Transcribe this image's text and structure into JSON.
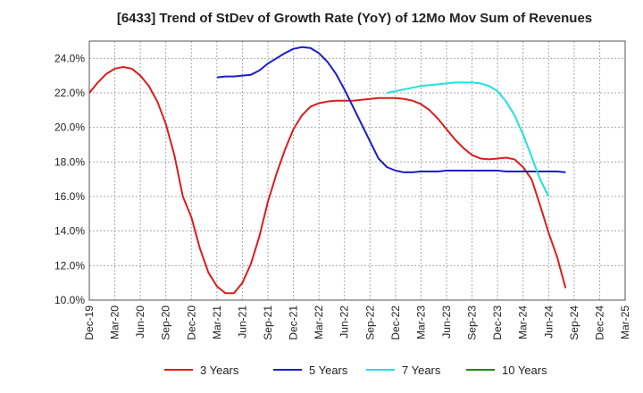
{
  "chart_data": {
    "type": "line",
    "title": "[6433]  Trend of StDev of Growth Rate (YoY) of 12Mo Mov Sum of Revenues",
    "xlabel": "",
    "ylabel": "",
    "ylim": [
      10,
      25
    ],
    "grid": true,
    "legend_position": "bottom",
    "y_ticks": [
      {
        "value": 10,
        "label": "10.0%"
      },
      {
        "value": 12,
        "label": "12.0%"
      },
      {
        "value": 14,
        "label": "14.0%"
      },
      {
        "value": 16,
        "label": "16.0%"
      },
      {
        "value": 18,
        "label": "18.0%"
      },
      {
        "value": 20,
        "label": "20.0%"
      },
      {
        "value": 22,
        "label": "22.0%"
      },
      {
        "value": 24,
        "label": "24.0%"
      }
    ],
    "x_ticks": [
      "Dec-19",
      "Mar-20",
      "Jun-20",
      "Sep-20",
      "Dec-20",
      "Mar-21",
      "Jun-21",
      "Sep-21",
      "Dec-21",
      "Mar-22",
      "Jun-22",
      "Sep-22",
      "Dec-22",
      "Mar-23",
      "Jun-23",
      "Sep-23",
      "Dec-23",
      "Mar-24",
      "Jun-24",
      "Sep-24",
      "Dec-24",
      "Mar-25"
    ],
    "series": [
      {
        "name": "3 Years",
        "color": "#dd1c1c",
        "points": [
          [
            0,
            22.0
          ],
          [
            1,
            22.6
          ],
          [
            2,
            23.1
          ],
          [
            3,
            23.4
          ],
          [
            4,
            23.5
          ],
          [
            5,
            23.4
          ],
          [
            6,
            23.0
          ],
          [
            7,
            22.4
          ],
          [
            8,
            21.5
          ],
          [
            9,
            20.2
          ],
          [
            10,
            18.4
          ],
          [
            11,
            16.0
          ],
          [
            12,
            14.8
          ],
          [
            13,
            13.0
          ],
          [
            14,
            11.6
          ],
          [
            15,
            10.8
          ],
          [
            16,
            10.4
          ],
          [
            17,
            10.4
          ],
          [
            18,
            11.0
          ],
          [
            19,
            12.1
          ],
          [
            20,
            13.7
          ],
          [
            21,
            15.7
          ],
          [
            22,
            17.3
          ],
          [
            23,
            18.7
          ],
          [
            24,
            19.9
          ],
          [
            25,
            20.7
          ],
          [
            26,
            21.2
          ],
          [
            27,
            21.4
          ],
          [
            28,
            21.5
          ],
          [
            29,
            21.55
          ],
          [
            30,
            21.55
          ],
          [
            31,
            21.55
          ],
          [
            32,
            21.6
          ],
          [
            33,
            21.65
          ],
          [
            34,
            21.7
          ],
          [
            35,
            21.7
          ],
          [
            36,
            21.7
          ],
          [
            37,
            21.65
          ],
          [
            38,
            21.55
          ],
          [
            39,
            21.35
          ],
          [
            40,
            21.0
          ],
          [
            41,
            20.5
          ],
          [
            42,
            19.9
          ],
          [
            43,
            19.3
          ],
          [
            44,
            18.8
          ],
          [
            45,
            18.4
          ],
          [
            46,
            18.2
          ],
          [
            47,
            18.15
          ],
          [
            48,
            18.2
          ],
          [
            49,
            18.25
          ],
          [
            50,
            18.15
          ],
          [
            51,
            17.7
          ],
          [
            52,
            17.0
          ],
          [
            53,
            15.5
          ],
          [
            54,
            13.9
          ],
          [
            55,
            12.5
          ],
          [
            56,
            10.7
          ]
        ]
      },
      {
        "name": "5 Years",
        "color": "#1c1ccc",
        "points": [
          [
            15,
            22.9
          ],
          [
            16,
            22.95
          ],
          [
            17,
            22.95
          ],
          [
            18,
            23.0
          ],
          [
            19,
            23.05
          ],
          [
            20,
            23.3
          ],
          [
            21,
            23.7
          ],
          [
            22,
            24.0
          ],
          [
            23,
            24.3
          ],
          [
            24,
            24.55
          ],
          [
            25,
            24.65
          ],
          [
            26,
            24.6
          ],
          [
            27,
            24.3
          ],
          [
            28,
            23.8
          ],
          [
            29,
            23.1
          ],
          [
            30,
            22.2
          ],
          [
            31,
            21.2
          ],
          [
            32,
            20.2
          ],
          [
            33,
            19.2
          ],
          [
            34,
            18.2
          ],
          [
            35,
            17.7
          ],
          [
            36,
            17.5
          ],
          [
            37,
            17.4
          ],
          [
            38,
            17.4
          ],
          [
            39,
            17.45
          ],
          [
            40,
            17.45
          ],
          [
            41,
            17.45
          ],
          [
            42,
            17.5
          ],
          [
            43,
            17.5
          ],
          [
            44,
            17.5
          ],
          [
            45,
            17.5
          ],
          [
            46,
            17.5
          ],
          [
            47,
            17.5
          ],
          [
            48,
            17.5
          ],
          [
            49,
            17.45
          ],
          [
            50,
            17.45
          ],
          [
            51,
            17.45
          ],
          [
            52,
            17.45
          ],
          [
            53,
            17.45
          ],
          [
            54,
            17.45
          ],
          [
            55,
            17.45
          ],
          [
            56,
            17.4
          ]
        ]
      },
      {
        "name": "7 Years",
        "color": "#22e0e0",
        "points": [
          [
            35,
            22.0
          ],
          [
            36,
            22.1
          ],
          [
            37,
            22.2
          ],
          [
            38,
            22.3
          ],
          [
            39,
            22.4
          ],
          [
            40,
            22.45
          ],
          [
            41,
            22.5
          ],
          [
            42,
            22.55
          ],
          [
            43,
            22.6
          ],
          [
            44,
            22.6
          ],
          [
            45,
            22.6
          ],
          [
            46,
            22.55
          ],
          [
            47,
            22.4
          ],
          [
            48,
            22.1
          ],
          [
            49,
            21.5
          ],
          [
            50,
            20.7
          ],
          [
            51,
            19.6
          ],
          [
            52,
            18.3
          ],
          [
            53,
            17.0
          ],
          [
            54,
            16.0
          ]
        ]
      },
      {
        "name": "10 Years",
        "color": "#1a8a1a",
        "points": []
      }
    ]
  }
}
